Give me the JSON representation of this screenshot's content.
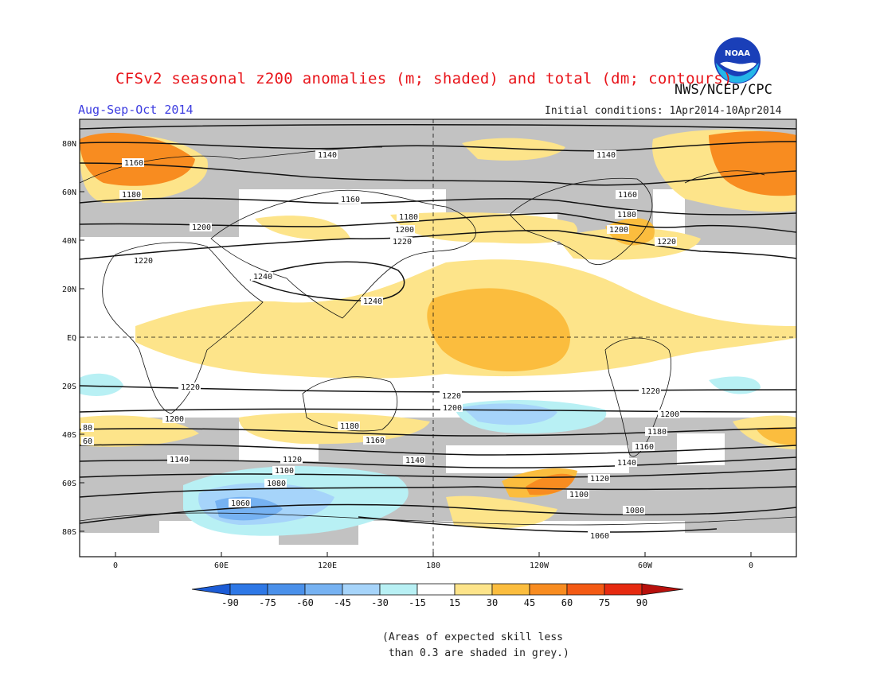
{
  "title": "CFSv2 seasonal z200 anomalies (m; shaded) and total (dm; contours)",
  "agency": "NWS/NCEP/CPC",
  "logo_text": "NOAA",
  "season": "Aug-Sep-Oct 2014",
  "initial_conditions": "Initial conditions: 1Apr2014-10Apr2014",
  "lat_labels": [
    "80N",
    "60N",
    "40N",
    "20N",
    "EQ",
    "20S",
    "40S",
    "60S",
    "80S"
  ],
  "lon_labels": [
    "0",
    "60E",
    "120E",
    "180",
    "120W",
    "60W",
    "0"
  ],
  "contour_labels": [
    "1140",
    "1160",
    "1180",
    "1200",
    "1220",
    "1240",
    "1120",
    "1100",
    "1080",
    "1060",
    "80",
    "60"
  ],
  "colorbar": {
    "ticks": [
      "-90",
      "-75",
      "-60",
      "-45",
      "-30",
      "-15",
      "15",
      "30",
      "45",
      "60",
      "75",
      "90"
    ],
    "colors": [
      "#1c5cd6",
      "#2e78e6",
      "#4a90ea",
      "#76b2f2",
      "#a6d4fa",
      "#b8f0f4",
      "#ffffff",
      "#fde48a",
      "#fbbd3e",
      "#f88c20",
      "#f45a14",
      "#e62a10",
      "#b8100c"
    ]
  },
  "note": "(Areas of expected skill less\n than 0.3 are shaded in grey.)"
}
